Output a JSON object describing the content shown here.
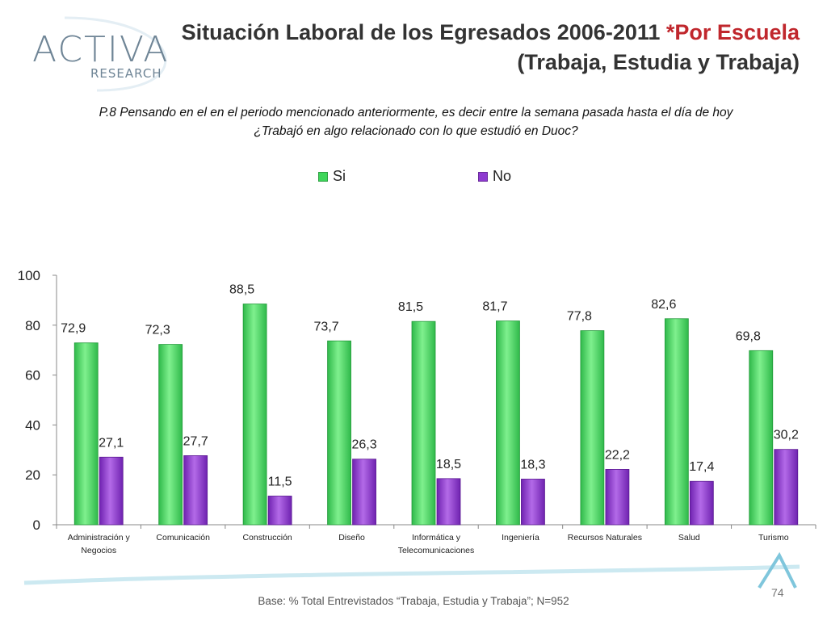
{
  "header": {
    "title_main": "Situación Laboral de los Egresados 2006-2011",
    "title_accent": "*Por Escuela",
    "title_line2": "(Trabaja, Estudia y Trabaja)"
  },
  "question": {
    "line1": "P.8 Pensando en el en el periodo mencionado anteriormente, es decir entre la semana pasada hasta el día de hoy",
    "line2": "¿Trabajó en algo relacionado con lo que estudió en Duoc?"
  },
  "logo": {
    "text_top": "ACTIVA",
    "text_bottom": "RESEARCH"
  },
  "colors": {
    "si": "#3ed65a",
    "no": "#8e3ad0",
    "accent": "#c0272d"
  },
  "chart_data": {
    "type": "bar",
    "title": "",
    "xlabel": "",
    "ylabel": "",
    "ylim": [
      0,
      100
    ],
    "yticks": [
      0,
      20,
      40,
      60,
      80,
      100
    ],
    "categories": [
      [
        "Administración y",
        "Negocios"
      ],
      [
        "Comunicación"
      ],
      [
        "Construcción"
      ],
      [
        "Diseño"
      ],
      [
        "Informática y",
        "Telecomunicaciones"
      ],
      [
        "Ingeniería"
      ],
      [
        "Recursos Naturales"
      ],
      [
        "Salud"
      ],
      [
        "Turismo"
      ]
    ],
    "series": [
      {
        "name": "Si",
        "values": [
          72.9,
          72.3,
          88.5,
          73.7,
          81.5,
          81.7,
          77.8,
          82.6,
          69.8
        ],
        "labels": [
          "72,9",
          "72,3",
          "88,5",
          "73,7",
          "81,5",
          "81,7",
          "77,8",
          "82,6",
          "69,8"
        ]
      },
      {
        "name": "No",
        "values": [
          27.1,
          27.7,
          11.5,
          26.3,
          18.5,
          18.3,
          22.2,
          17.4,
          30.2
        ],
        "labels": [
          "27,1",
          "27,7",
          "11,5",
          "26,3",
          "18,5",
          "18,3",
          "22,2",
          "17,4",
          "30,2"
        ]
      }
    ],
    "legend": "top"
  },
  "footer": {
    "text": "Base: % Total Entrevistados “Trabaja, Estudia y Trabaja”; N=952",
    "page_number": "74"
  }
}
